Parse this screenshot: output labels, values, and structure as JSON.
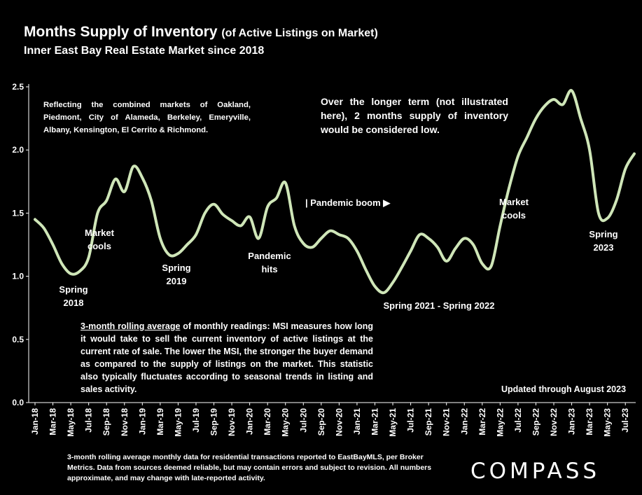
{
  "header": {
    "title": "Months Supply of Inventory",
    "title_suffix": "(of Active Listings on Market)",
    "subtitle": "Inner East Bay Real Estate Market since 2018"
  },
  "notes": {
    "markets": "Reflecting the combined markets of Oakland, Piedmont, City of Alameda, Berkeley, Emeryville, Albany, Kensington, El Cerrito & Richmond.",
    "longer_term": "Over the longer term (not illustrated here), 2 months supply of inventory would be considered low.",
    "definition_lead": "3-month rolling average",
    "definition_body": " of monthly readings: MSI measures how long it would take to sell the current inventory of active listings at the current rate of sale. The lower the MSI, the stronger the buyer demand as compared to the supply of listings on the market. This statistic also typically fluctuates according to seasonal trends in listing and sales activity.",
    "updated": "Updated through August 2023",
    "footnote": "3-month rolling average monthly data for residential transactions reported to EastBayMLS, per Broker Metrics. Data from sources deemed reliable, but may contain errors and subject to revision. All numbers approximate, and may change with late-reported activity."
  },
  "logo": "COMPASS",
  "chart_data": {
    "type": "line",
    "title": "Months Supply of Inventory",
    "ylim": [
      0,
      2.5
    ],
    "yticks": [
      "0.0",
      "0.5",
      "1.0",
      "1.5",
      "2.0",
      "2.5"
    ],
    "grid": false,
    "line_color": "#cfe6b8",
    "x": [
      "Jan-18",
      "Feb-18",
      "Mar-18",
      "Apr-18",
      "May-18",
      "Jun-18",
      "Jul-18",
      "Aug-18",
      "Sep-18",
      "Oct-18",
      "Nov-18",
      "Dec-18",
      "Jan-19",
      "Feb-19",
      "Mar-19",
      "Apr-19",
      "May-19",
      "Jun-19",
      "Jul-19",
      "Aug-19",
      "Sep-19",
      "Oct-19",
      "Nov-19",
      "Dec-19",
      "Jan-20",
      "Feb-20",
      "Mar-20",
      "Apr-20",
      "May-20",
      "Jun-20",
      "Jul-20",
      "Aug-20",
      "Sep-20",
      "Oct-20",
      "Nov-20",
      "Dec-20",
      "Jan-21",
      "Feb-21",
      "Mar-21",
      "Apr-21",
      "May-21",
      "Jun-21",
      "Jul-21",
      "Aug-21",
      "Sep-21",
      "Oct-21",
      "Nov-21",
      "Dec-21",
      "Jan-22",
      "Feb-22",
      "Mar-22",
      "Apr-22",
      "May-22",
      "Jun-22",
      "Jul-22",
      "Aug-22",
      "Sep-22",
      "Oct-22",
      "Nov-22",
      "Dec-22",
      "Jan-23",
      "Feb-23",
      "Mar-23",
      "Apr-23",
      "May-23",
      "Jun-23",
      "Jul-23",
      "Aug-23"
    ],
    "xtick_labels": [
      "Jan-18",
      "Mar-18",
      "May-18",
      "Jul-18",
      "Sep-18",
      "Nov-18",
      "Jan-19",
      "Mar-19",
      "May-19",
      "Jul-19",
      "Sep-19",
      "Nov-19",
      "Jan-20",
      "Mar-20",
      "May-20",
      "Jul-20",
      "Sep-20",
      "Nov-20",
      "Jan-21",
      "Mar-21",
      "May-21",
      "Jul-21",
      "Sep-21",
      "Nov-21",
      "Jan-22",
      "Mar-22",
      "May-22",
      "Jul-22",
      "Sep-22",
      "Nov-22",
      "Jan-23",
      "Mar-23",
      "May-23",
      "Jul-23"
    ],
    "values": [
      1.45,
      1.38,
      1.25,
      1.1,
      1.02,
      1.04,
      1.15,
      1.5,
      1.6,
      1.77,
      1.67,
      1.87,
      1.78,
      1.6,
      1.3,
      1.17,
      1.18,
      1.25,
      1.33,
      1.5,
      1.57,
      1.49,
      1.44,
      1.4,
      1.47,
      1.3,
      1.55,
      1.62,
      1.74,
      1.4,
      1.26,
      1.23,
      1.3,
      1.36,
      1.33,
      1.3,
      1.2,
      1.05,
      0.92,
      0.87,
      0.95,
      1.07,
      1.2,
      1.33,
      1.3,
      1.23,
      1.12,
      1.22,
      1.3,
      1.25,
      1.1,
      1.08,
      1.4,
      1.7,
      1.95,
      2.1,
      2.25,
      2.35,
      2.4,
      2.36,
      2.47,
      2.25,
      2.0,
      1.5,
      1.46,
      1.6,
      1.85,
      1.97
    ],
    "annotations": [
      {
        "text": [
          "Spring",
          "2018"
        ]
      },
      {
        "text": [
          "Market",
          "cools"
        ]
      },
      {
        "text": [
          "Spring",
          "2019"
        ]
      },
      {
        "text": [
          "Pandemic",
          "hits"
        ]
      },
      {
        "text": [
          "| Pandemic boom ▶"
        ]
      },
      {
        "text": [
          "Spring 2021 - Spring 2022"
        ]
      },
      {
        "text": [
          "Market",
          "cools"
        ]
      },
      {
        "text": [
          "Spring",
          "2023"
        ]
      }
    ]
  }
}
